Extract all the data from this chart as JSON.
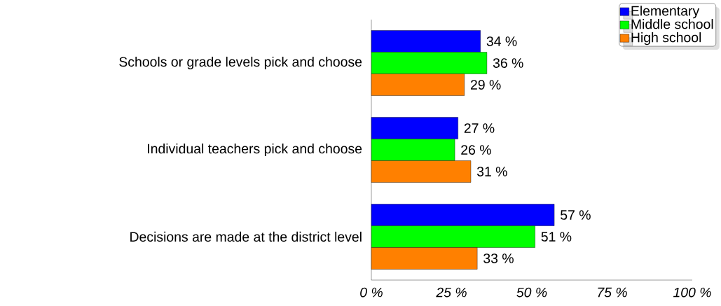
{
  "chart_data": {
    "type": "bar",
    "orientation": "horizontal",
    "categories": [
      "Schools or grade levels pick and choose",
      "Individual teachers pick and choose",
      "Decisions are made at the district level"
    ],
    "series": [
      {
        "name": "Elementary",
        "color": "#0000ff",
        "values": [
          34,
          27,
          57
        ],
        "value_labels": [
          "34 %",
          "27 %",
          "57 %"
        ]
      },
      {
        "name": "Middle school",
        "color": "#00ff00",
        "values": [
          36,
          26,
          51
        ],
        "value_labels": [
          "36 %",
          "26 %",
          "51 %"
        ]
      },
      {
        "name": "High school",
        "color": "#ff8000",
        "values": [
          29,
          31,
          33
        ],
        "value_labels": [
          "29 %",
          "31 %",
          "33 %"
        ]
      }
    ],
    "xlim": [
      0,
      100
    ],
    "xticks": [
      {
        "value": 0,
        "label": "0 %"
      },
      {
        "value": 25,
        "label": "25 %"
      },
      {
        "value": 50,
        "label": "50 %"
      },
      {
        "value": 75,
        "label": "75 %"
      },
      {
        "value": 100,
        "label": "100 %"
      }
    ],
    "grid": false,
    "legend": "top right"
  }
}
